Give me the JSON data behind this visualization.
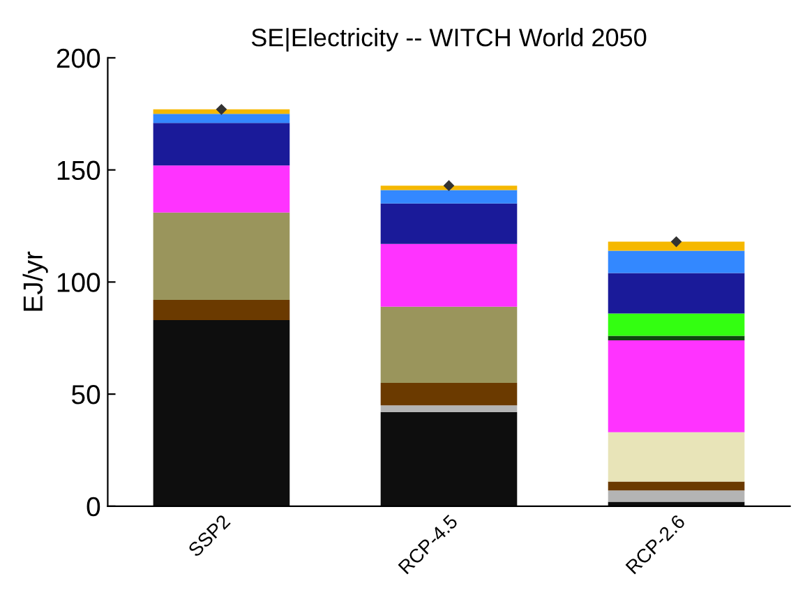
{
  "chart_data": {
    "type": "bar",
    "stacked": true,
    "title": "SE|Electricity -- WITCH World 2050",
    "ylabel": "EJ/yr",
    "categories": [
      "SSP2",
      "RCP-4.5",
      "RCP-2.6"
    ],
    "ylim": [
      0,
      200
    ],
    "yticks": [
      0,
      50,
      100,
      150,
      200
    ],
    "grid": false,
    "series": [
      {
        "color": "#0e0e0e",
        "values": [
          83,
          42,
          2
        ]
      },
      {
        "color": "#b4b4b4",
        "values": [
          0,
          3,
          5
        ]
      },
      {
        "color": "#6b3a00",
        "values": [
          9,
          10,
          4
        ]
      },
      {
        "color": "#e8e4b8",
        "values": [
          0,
          0,
          22
        ]
      },
      {
        "color": "#9a955c",
        "values": [
          39,
          34,
          0
        ]
      },
      {
        "color": "#ff33ff",
        "values": [
          21,
          28,
          41
        ]
      },
      {
        "color": "#0e4a0e",
        "values": [
          0,
          0,
          2
        ]
      },
      {
        "color": "#33ff11",
        "values": [
          0,
          0,
          10
        ]
      },
      {
        "color": "#1a1a99",
        "values": [
          19,
          18,
          18
        ]
      },
      {
        "color": "#3388ff",
        "values": [
          4,
          6,
          10
        ]
      },
      {
        "color": "#f5b800",
        "values": [
          2,
          2,
          4
        ]
      },
      {
        "type": "scatter",
        "marker": "diamond",
        "color": "#333333",
        "x": [
          "SSP2",
          "RCP-4.5",
          "RCP-2.6"
        ],
        "values": [
          177,
          143,
          118
        ]
      }
    ]
  }
}
